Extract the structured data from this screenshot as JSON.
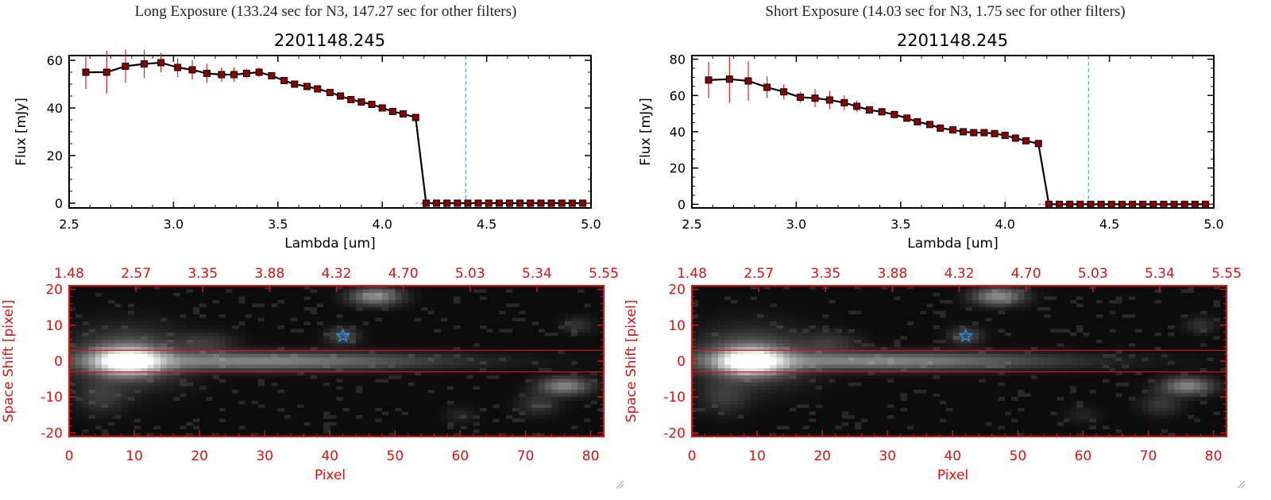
{
  "panels": [
    {
      "header": "Long Exposure (133.24 sec for N3, 147.27 sec for other filters)",
      "spectrum": {
        "title": "2201148.245",
        "xlabel": "Lambda [um]",
        "ylabel": "Flux [mJy]",
        "xlim": [
          2.5,
          5.0
        ],
        "ylim": [
          -2,
          62
        ],
        "xticks": [
          "2.5",
          "3.0",
          "3.5",
          "4.0",
          "4.5",
          "5.0"
        ],
        "yticks": [
          "0",
          "20",
          "40",
          "60"
        ]
      },
      "image": {
        "ylabel": "Space Shift [pixel]",
        "xlabel": "Pixel",
        "xticks": [
          "0",
          "10",
          "20",
          "30",
          "40",
          "50",
          "60",
          "70",
          "80"
        ],
        "yticks": [
          "20",
          "10",
          "0",
          "-10",
          "-20"
        ],
        "top_ticks": [
          "1.48",
          "2.57",
          "3.35",
          "3.88",
          "4.32",
          "4.70",
          "5.03",
          "5.34",
          "5.55"
        ]
      }
    },
    {
      "header": "Short Exposure (14.03 sec for N3, 1.75 sec for other filters)",
      "spectrum": {
        "title": "2201148.245",
        "xlabel": "Lambda [um]",
        "ylabel": "Flux [mJy]",
        "xlim": [
          2.5,
          5.0
        ],
        "ylim": [
          -2,
          82
        ],
        "xticks": [
          "2.5",
          "3.0",
          "3.5",
          "4.0",
          "4.5",
          "5.0"
        ],
        "yticks": [
          "0",
          "20",
          "40",
          "60",
          "80"
        ]
      },
      "image": {
        "ylabel": "Space Shift [pixel]",
        "xlabel": "Pixel",
        "xticks": [
          "0",
          "10",
          "20",
          "30",
          "40",
          "50",
          "60",
          "70",
          "80"
        ],
        "yticks": [
          "20",
          "10",
          "0",
          "-10",
          "-20"
        ],
        "top_ticks": [
          "1.48",
          "2.57",
          "3.35",
          "3.88",
          "4.32",
          "4.70",
          "5.03",
          "5.34",
          "5.55"
        ]
      }
    }
  ],
  "colors": {
    "line": "#000000",
    "marker": "#8b0000",
    "errorbar": "#e02020",
    "dashed_line": "#3a8fd8",
    "image_axes": "#dd1111",
    "star": "#1e90ff",
    "zero_line": "#e02020"
  },
  "chart_data": [
    {
      "type": "line",
      "title": "2201148.245",
      "xlabel": "Lambda [um]",
      "ylabel": "Flux [mJy]",
      "xlim": [
        2.5,
        5.0
      ],
      "ylim": [
        -2,
        62
      ],
      "vline_x": 4.4,
      "x": [
        2.58,
        2.68,
        2.77,
        2.86,
        2.94,
        3.02,
        3.09,
        3.16,
        3.23,
        3.29,
        3.35,
        3.41,
        3.47,
        3.53,
        3.58,
        3.64,
        3.69,
        3.75,
        3.8,
        3.85,
        3.9,
        3.95,
        4.0,
        4.05,
        4.1,
        4.16,
        4.21,
        4.26,
        4.31,
        4.36,
        4.41,
        4.46,
        4.51,
        4.56,
        4.61,
        4.66,
        4.71,
        4.76,
        4.81,
        4.86,
        4.91,
        4.96
      ],
      "y": [
        55,
        55,
        57.5,
        58.5,
        59,
        57,
        56,
        54.5,
        54,
        54,
        54.5,
        55,
        53.5,
        51.5,
        50,
        49,
        48,
        46.5,
        45,
        43.5,
        42.5,
        41.5,
        40,
        38.5,
        37.5,
        36,
        0,
        0,
        0,
        0,
        0,
        0,
        0,
        0,
        0,
        0,
        0,
        0,
        0,
        0,
        0,
        0
      ],
      "yerr": [
        7,
        9,
        7,
        6,
        4,
        4,
        4,
        4,
        3,
        3,
        2,
        2,
        1,
        1,
        1,
        1,
        1,
        1,
        1,
        1,
        1,
        1,
        1,
        1,
        1,
        1,
        0,
        0,
        0,
        0,
        0,
        0,
        0,
        0,
        0,
        0,
        0,
        0,
        0,
        0,
        0,
        0
      ]
    },
    {
      "type": "line",
      "title": "2201148.245",
      "xlabel": "Lambda [um]",
      "ylabel": "Flux [mJy]",
      "xlim": [
        2.5,
        5.0
      ],
      "ylim": [
        -2,
        82
      ],
      "vline_x": 4.4,
      "x": [
        2.58,
        2.68,
        2.77,
        2.86,
        2.94,
        3.02,
        3.09,
        3.16,
        3.23,
        3.29,
        3.35,
        3.41,
        3.47,
        3.53,
        3.58,
        3.64,
        3.69,
        3.75,
        3.8,
        3.85,
        3.9,
        3.95,
        4.0,
        4.05,
        4.1,
        4.16,
        4.21,
        4.26,
        4.31,
        4.36,
        4.41,
        4.46,
        4.51,
        4.56,
        4.61,
        4.66,
        4.71,
        4.76,
        4.81,
        4.86,
        4.91,
        4.96
      ],
      "y": [
        68.5,
        69,
        68,
        64.5,
        62,
        59,
        58.5,
        57.5,
        56,
        54,
        52,
        51,
        49.5,
        47.5,
        45.5,
        44,
        42,
        41,
        40,
        39.5,
        39.5,
        39,
        38,
        36.5,
        35,
        33.5,
        0,
        0,
        0,
        0,
        0,
        0,
        0,
        0,
        0,
        0,
        0,
        0,
        0,
        0,
        0,
        0
      ],
      "yerr": [
        10,
        13,
        11,
        6,
        4,
        3,
        5,
        5,
        4,
        3,
        2,
        2,
        1,
        1,
        1,
        1,
        1,
        1,
        1,
        1,
        1,
        1,
        1,
        1,
        1,
        1,
        0,
        0,
        0,
        0,
        0,
        0,
        0,
        0,
        0,
        0,
        0,
        0,
        0,
        0,
        0,
        0
      ]
    }
  ],
  "spectral_image": {
    "type": "heatmap",
    "xlim": [
      0,
      82
    ],
    "ylim": [
      -21,
      21
    ],
    "aperture_lines_y": [
      3,
      -3
    ],
    "star_marker": {
      "x": 42,
      "y": 7
    },
    "sources": [
      {
        "x": 9,
        "y": 0,
        "sx": 3.2,
        "sy": 2.4,
        "amp": 1.0
      },
      {
        "x": 9,
        "y": 1,
        "sx": 5.5,
        "sy": 5,
        "amp": 0.28
      },
      {
        "x": 28,
        "y": 0,
        "sx": 18,
        "sy": 1.6,
        "amp": 0.42
      },
      {
        "x": 42,
        "y": 7,
        "sx": 1.6,
        "sy": 1.5,
        "amp": 0.2
      },
      {
        "x": 47,
        "y": 18,
        "sx": 2.5,
        "sy": 1.6,
        "amp": 0.45
      },
      {
        "x": 76,
        "y": -7,
        "sx": 2.5,
        "sy": 1.6,
        "amp": 0.42
      },
      {
        "x": 72,
        "y": -12,
        "sx": 2,
        "sy": 2,
        "amp": 0.12
      },
      {
        "x": 5,
        "y": -10,
        "sx": 2.5,
        "sy": 3,
        "amp": 0.12
      },
      {
        "x": 21,
        "y": 5,
        "sx": 3,
        "sy": 2,
        "amp": 0.12
      },
      {
        "x": 78,
        "y": 10,
        "sx": 1.5,
        "sy": 1.5,
        "amp": 0.1
      },
      {
        "x": 60,
        "y": -15,
        "sx": 1.5,
        "sy": 1.5,
        "amp": 0.06
      }
    ]
  }
}
